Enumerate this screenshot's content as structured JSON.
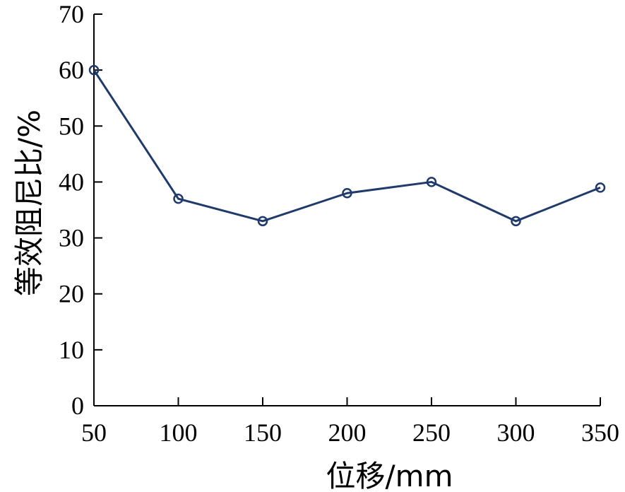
{
  "chart_data": {
    "type": "line",
    "xlabel": "位移/mm",
    "ylabel": "等效阻尼比/%",
    "x": [
      50,
      100,
      150,
      200,
      250,
      300,
      350
    ],
    "xticks": [
      50,
      100,
      150,
      200,
      250,
      300,
      350
    ],
    "xlim": [
      50,
      350
    ],
    "yticks": [
      0,
      10,
      20,
      30,
      40,
      50,
      60,
      70
    ],
    "ylim": [
      0,
      70
    ],
    "series": [
      {
        "values": [
          60,
          37,
          33,
          38,
          40,
          33,
          39
        ],
        "color": "#1f3a6b",
        "marker": "circle"
      }
    ],
    "grid": false,
    "legend": "none"
  }
}
